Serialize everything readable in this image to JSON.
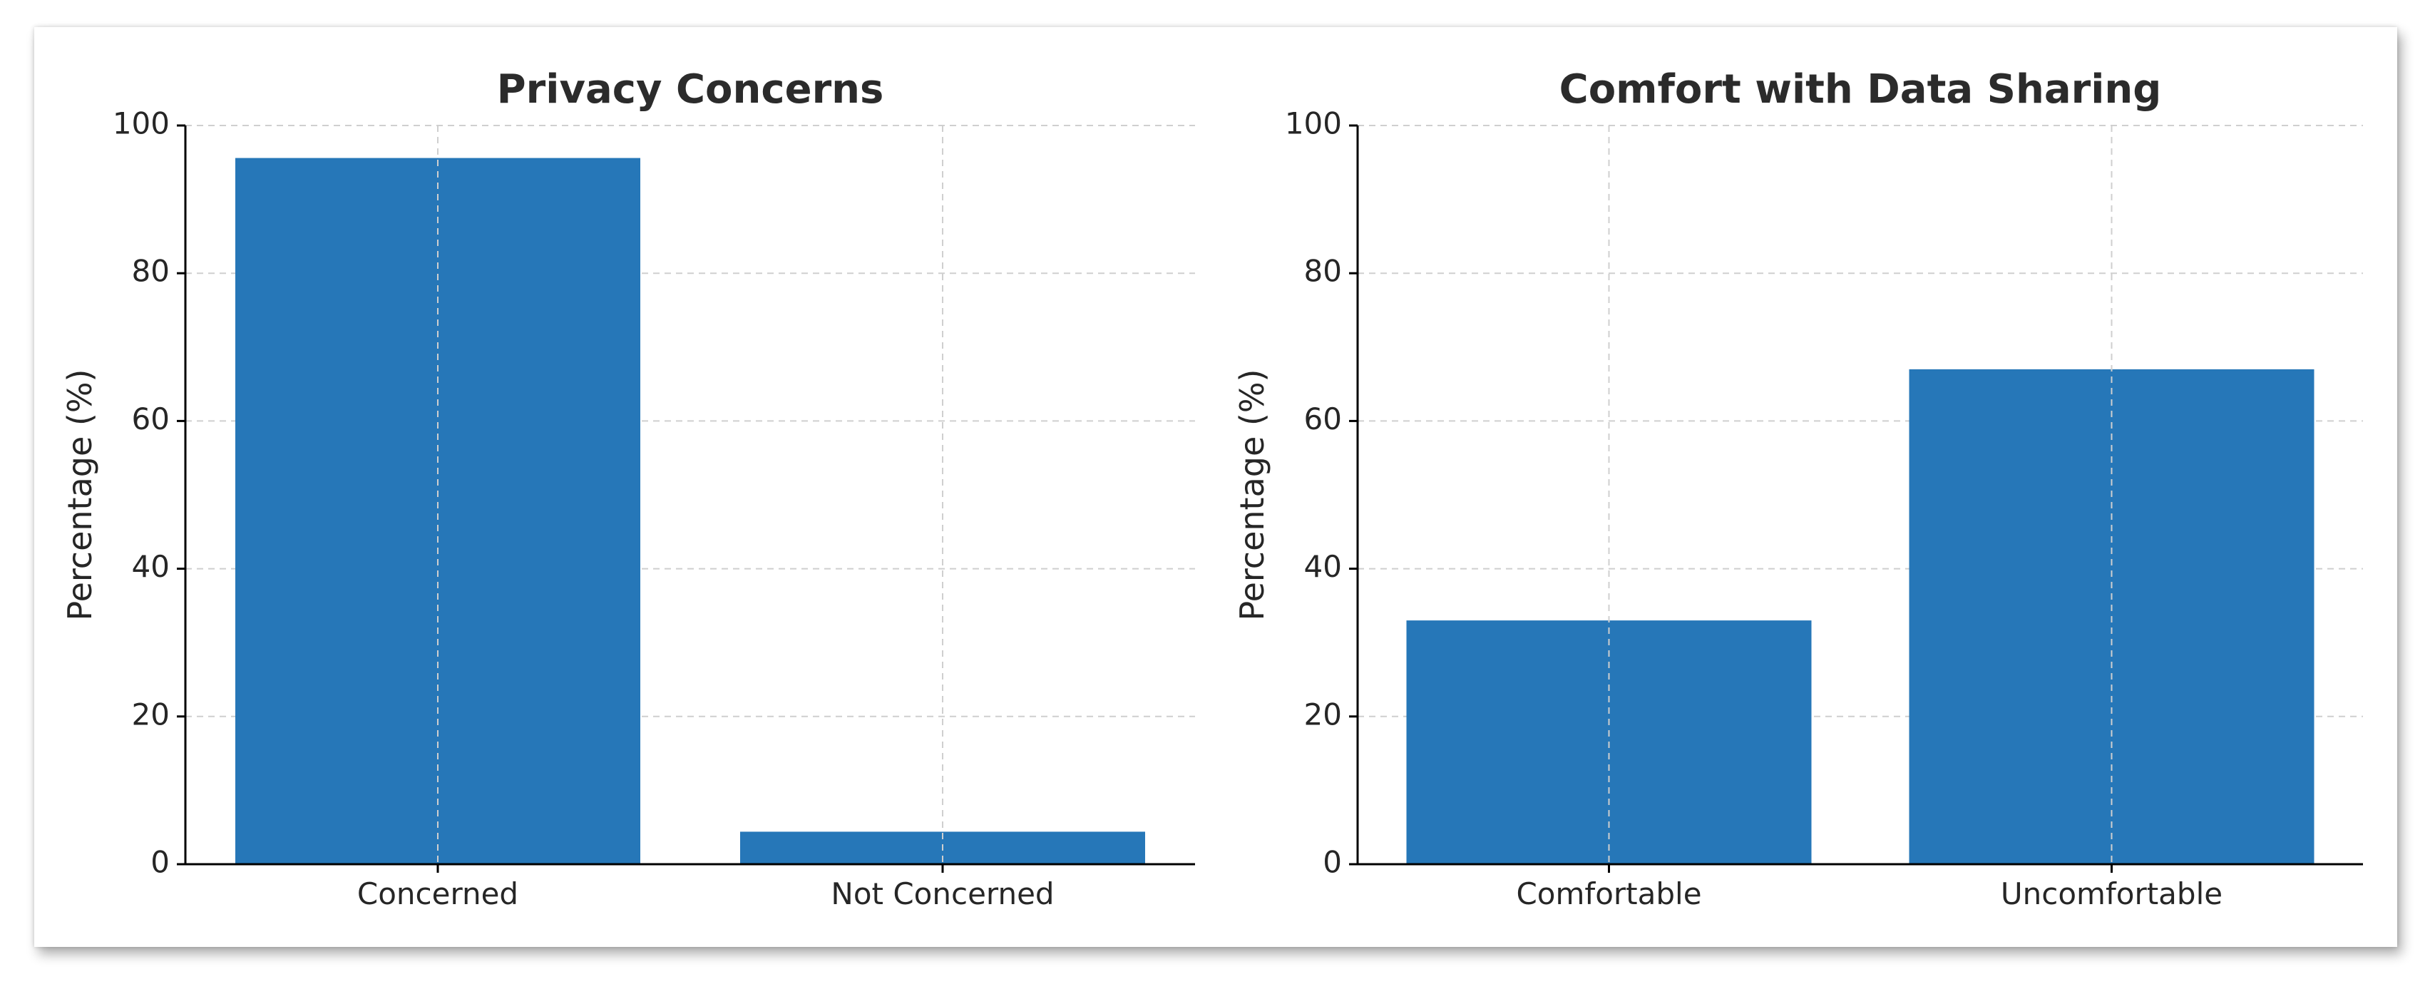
{
  "chart_data": [
    {
      "type": "bar",
      "title": "Privacy Concerns",
      "categories": [
        "Concerned",
        "Not Concerned"
      ],
      "values": [
        95.6,
        4.4
      ],
      "xlabel": "",
      "ylabel": "Percentage (%)",
      "ylim": [
        0,
        100
      ],
      "yticks": [
        0,
        20,
        40,
        60,
        80,
        100
      ],
      "grid": true,
      "bar_color": "#2677b8"
    },
    {
      "type": "bar",
      "title": "Comfort with Data Sharing",
      "categories": [
        "Comfortable",
        "Uncomfortable"
      ],
      "values": [
        33,
        67
      ],
      "xlabel": "",
      "ylabel": "Percentage (%)",
      "ylim": [
        0,
        100
      ],
      "yticks": [
        0,
        20,
        40,
        60,
        80,
        100
      ],
      "grid": true,
      "bar_color": "#2677b8"
    }
  ]
}
